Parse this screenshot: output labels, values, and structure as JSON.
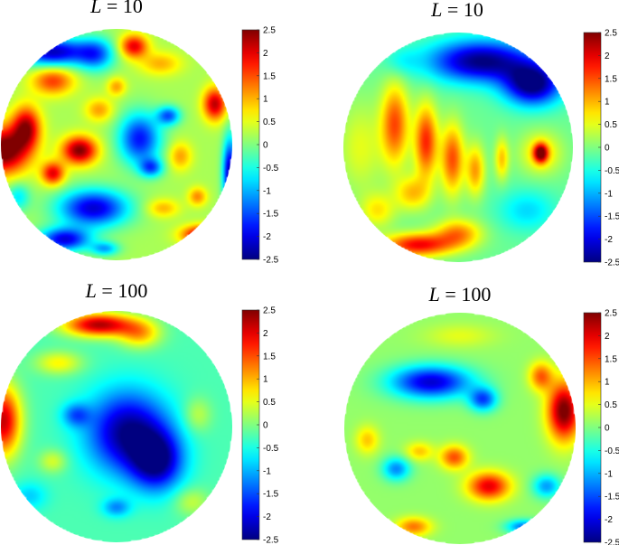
{
  "chart_data": [
    {
      "type": "heatmap",
      "title": "L = 10",
      "title_parts": {
        "var": "L",
        "op": "=",
        "num": "10"
      },
      "projection": "sphere",
      "colormap": "jet",
      "clim": [
        -2.5,
        2.5
      ],
      "colorbar_ticks": [
        "2.5",
        "2",
        "1.5",
        "1",
        "0.5",
        "0",
        "-0.5",
        "-1",
        "-1.5",
        "-2",
        "-2.5"
      ],
      "field": {
        "base": 0.2,
        "blobs": [
          [
            -0.98,
            0.05,
            0.22,
            0.2,
            2.6
          ],
          [
            -0.55,
            -0.8,
            0.3,
            0.12,
            -2.4
          ],
          [
            -0.18,
            -0.78,
            0.16,
            0.14,
            -1.5
          ],
          [
            0.15,
            -0.85,
            0.12,
            0.1,
            1.8
          ],
          [
            0.38,
            -0.7,
            0.18,
            0.1,
            0.8
          ],
          [
            -0.55,
            -0.55,
            0.18,
            0.12,
            1.4
          ],
          [
            -0.78,
            -0.15,
            0.12,
            0.18,
            2.0
          ],
          [
            -0.32,
            0.05,
            0.15,
            0.12,
            2.3
          ],
          [
            -0.55,
            0.25,
            0.1,
            0.1,
            1.8
          ],
          [
            -0.15,
            -0.3,
            0.12,
            0.1,
            0.9
          ],
          [
            0.2,
            -0.05,
            0.18,
            0.22,
            -2.0
          ],
          [
            0.45,
            -0.25,
            0.1,
            0.08,
            -1.6
          ],
          [
            0.3,
            0.2,
            0.1,
            0.08,
            -1.5
          ],
          [
            0.55,
            0.1,
            0.1,
            0.12,
            0.9
          ],
          [
            0.85,
            -0.35,
            0.1,
            0.14,
            2.0
          ],
          [
            0.98,
            0.25,
            0.06,
            0.3,
            -2.5
          ],
          [
            -0.2,
            0.55,
            0.3,
            0.16,
            -2.3
          ],
          [
            -0.45,
            0.82,
            0.22,
            0.1,
            -2.2
          ],
          [
            0.75,
            0.78,
            0.18,
            0.08,
            2.2
          ],
          [
            0.4,
            0.55,
            0.14,
            0.08,
            0.8
          ],
          [
            -0.85,
            0.45,
            0.1,
            0.12,
            -0.9
          ],
          [
            -0.1,
            0.9,
            0.12,
            0.06,
            -1.2
          ],
          [
            0.0,
            -0.5,
            0.08,
            0.08,
            0.9
          ],
          [
            0.7,
            0.45,
            0.08,
            0.08,
            1.0
          ]
        ]
      }
    },
    {
      "type": "heatmap",
      "title": "L = 10",
      "title_parts": {
        "var": "L",
        "op": "=",
        "num": "10"
      },
      "projection": "sphere",
      "colormap": "jet",
      "clim": [
        -2.5,
        2.5
      ],
      "colorbar_ticks": [
        "2.5",
        "2",
        "1.5",
        "1",
        "0.5",
        "0",
        "-0.5",
        "-1",
        "-1.5",
        "-2",
        "-2.5"
      ],
      "field": {
        "base": -0.1,
        "blobs": [
          [
            0.2,
            -0.75,
            0.45,
            0.18,
            -2.4
          ],
          [
            0.65,
            -0.55,
            0.25,
            0.18,
            -2.5
          ],
          [
            -0.85,
            0.0,
            0.2,
            0.4,
            0.6
          ],
          [
            -0.55,
            -0.2,
            0.12,
            0.35,
            1.6
          ],
          [
            -0.28,
            -0.05,
            0.1,
            0.32,
            1.8
          ],
          [
            -0.05,
            0.1,
            0.1,
            0.3,
            1.6
          ],
          [
            0.15,
            0.2,
            0.08,
            0.22,
            1.2
          ],
          [
            0.38,
            0.1,
            0.06,
            0.18,
            1.0
          ],
          [
            0.72,
            0.05,
            0.06,
            0.08,
            2.3
          ],
          [
            0.72,
            0.05,
            0.18,
            0.18,
            0.9
          ],
          [
            -0.35,
            0.85,
            0.3,
            0.1,
            2.0
          ],
          [
            0.0,
            0.75,
            0.2,
            0.12,
            1.3
          ],
          [
            -0.7,
            0.55,
            0.15,
            0.15,
            0.8
          ],
          [
            0.6,
            0.55,
            0.25,
            0.18,
            -0.7
          ],
          [
            -0.5,
            -0.75,
            0.15,
            0.12,
            -0.4
          ],
          [
            -0.4,
            0.4,
            0.15,
            0.15,
            1.0
          ]
        ]
      }
    },
    {
      "type": "heatmap",
      "title": "L = 100",
      "title_parts": {
        "var": "L",
        "op": "=",
        "num": "100"
      },
      "projection": "sphere",
      "colormap": "jet",
      "clim": [
        -2.5,
        2.5
      ],
      "colorbar_ticks": [
        "2.5",
        "2",
        "1.5",
        "1",
        "0.5",
        "0",
        "-0.5",
        "-1",
        "-1.5",
        "-2",
        "-2.5"
      ],
      "field": {
        "base": -0.25,
        "blobs": [
          [
            -0.15,
            -0.88,
            0.3,
            0.1,
            2.5
          ],
          [
            0.2,
            -0.8,
            0.18,
            0.12,
            1.2
          ],
          [
            -0.5,
            -0.55,
            0.2,
            0.1,
            0.9
          ],
          [
            -0.98,
            -0.05,
            0.15,
            0.3,
            2.4
          ],
          [
            0.1,
            0.05,
            0.35,
            0.35,
            -2.2
          ],
          [
            0.35,
            0.3,
            0.22,
            0.25,
            -2.0
          ],
          [
            -0.35,
            -0.1,
            0.12,
            0.1,
            -1.0
          ],
          [
            0.7,
            -0.1,
            0.12,
            0.15,
            0.6
          ],
          [
            -0.55,
            0.3,
            0.12,
            0.1,
            0.7
          ],
          [
            0.0,
            0.7,
            0.12,
            0.08,
            -0.9
          ],
          [
            0.65,
            0.65,
            0.15,
            0.12,
            0.6
          ],
          [
            -0.75,
            0.6,
            0.15,
            0.12,
            -0.6
          ]
        ]
      }
    },
    {
      "type": "heatmap",
      "title": "L = 100",
      "title_parts": {
        "var": "L",
        "op": "=",
        "num": "100"
      },
      "projection": "sphere",
      "colormap": "jet",
      "clim": [
        -2.5,
        2.5
      ],
      "colorbar_ticks": [
        "2.5",
        "2",
        "1.5",
        "1",
        "0.5",
        "0",
        "-0.5",
        "-1",
        "-1.5",
        "-2",
        "-2.5"
      ],
      "field": {
        "base": 0.1,
        "blobs": [
          [
            -0.25,
            -0.4,
            0.35,
            0.14,
            -2.2
          ],
          [
            0.2,
            -0.25,
            0.12,
            0.1,
            -1.6
          ],
          [
            0.9,
            -0.15,
            0.14,
            0.25,
            2.5
          ],
          [
            0.7,
            -0.45,
            0.1,
            0.12,
            1.3
          ],
          [
            -0.05,
            0.25,
            0.12,
            0.1,
            1.4
          ],
          [
            0.25,
            0.5,
            0.18,
            0.12,
            1.9
          ],
          [
            -0.35,
            0.2,
            0.12,
            0.08,
            0.8
          ],
          [
            -0.55,
            0.35,
            0.12,
            0.1,
            -1.3
          ],
          [
            -0.8,
            0.1,
            0.1,
            0.12,
            0.8
          ],
          [
            0.75,
            0.5,
            0.12,
            0.1,
            -1.2
          ],
          [
            -0.4,
            0.85,
            0.15,
            0.08,
            1.2
          ],
          [
            0.55,
            0.85,
            0.15,
            0.06,
            -1.4
          ],
          [
            0.0,
            -0.8,
            0.3,
            0.1,
            0.4
          ]
        ]
      }
    }
  ]
}
